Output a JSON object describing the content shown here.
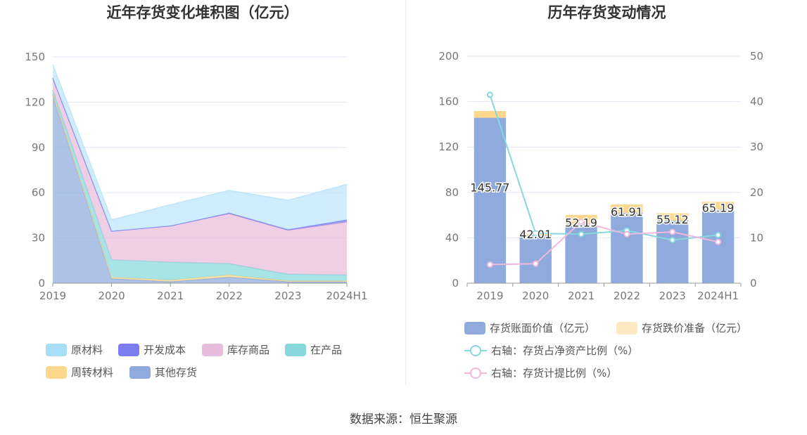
{
  "source_text": "数据来源：恒生聚源",
  "left_chart": {
    "title": "近年存货变化堆积图（亿元）",
    "type": "area",
    "stacked": true,
    "categories": [
      "2019",
      "2020",
      "2021",
      "2022",
      "2023",
      "2024H1"
    ],
    "ylim": [
      0,
      150
    ],
    "yticks": [
      "0",
      "30",
      "60",
      "90",
      "120",
      "150"
    ],
    "grid": true,
    "legend_position": "bottom",
    "series": [
      {
        "name": "其他存货",
        "color": "#8faadc",
        "values": [
          125,
          3,
          1,
          4,
          1,
          1
        ]
      },
      {
        "name": "周转材料",
        "color": "#fbd88e",
        "values": [
          1,
          1,
          1,
          1.5,
          0.5,
          0.5
        ]
      },
      {
        "name": "在产品",
        "color": "#86d8dc",
        "values": [
          2,
          11.5,
          12,
          7.5,
          4.5,
          4
        ]
      },
      {
        "name": "库存商品",
        "color": "#e8bcdc",
        "values": [
          8,
          19,
          24,
          33,
          29,
          35
        ]
      },
      {
        "name": "开发成本",
        "color": "#7b7cf0",
        "values": [
          0,
          0,
          0,
          0.5,
          0.5,
          1.5
        ]
      },
      {
        "name": "原材料",
        "color": "#bde6fb",
        "values": [
          9,
          7.5,
          14,
          15,
          19.5,
          23.5
        ]
      }
    ],
    "legend_order": [
      "原材料",
      "开发成本",
      "库存商品",
      "在产品",
      "周转材料",
      "其他存货"
    ],
    "legend_colors": {
      "原材料": "#a9def8",
      "开发成本": "#7b7cf0",
      "库存商品": "#e8bcdc",
      "在产品": "#86d8dc",
      "周转材料": "#fbd88e",
      "其他存货": "#8faadc"
    }
  },
  "right_chart": {
    "title": "历年存货变动情况",
    "type": "bar",
    "categories": [
      "2019",
      "2020",
      "2021",
      "2022",
      "2023",
      "2024H1"
    ],
    "ylim_left": [
      0,
      200
    ],
    "yticks_left": [
      "0",
      "40",
      "80",
      "120",
      "160",
      "200"
    ],
    "ylim_right": [
      0,
      50
    ],
    "yticks_right": [
      "0",
      "10",
      "20",
      "30",
      "40",
      "50"
    ],
    "grid": true,
    "legend_position": "bottom",
    "bar_series": [
      {
        "name": "存货账面价值（亿元）",
        "color": "#8faadc",
        "values": [
          145.77,
          42.01,
          52.19,
          61.91,
          55.12,
          65.19
        ],
        "labels": [
          "145.77",
          "42.01",
          "52.19",
          "61.91",
          "55.12",
          "65.19"
        ]
      },
      {
        "name": "存货跌价准备（亿元）",
        "color": "#fbd88e",
        "legend_color": "#fde8c4",
        "values": [
          6,
          1.5,
          8,
          7.5,
          6.5,
          6.5
        ]
      }
    ],
    "line_series": [
      {
        "name": "右轴：存货占净资产比例（%）",
        "color": "#86d8dc",
        "values": [
          41.5,
          11,
          10.8,
          11.6,
          9.5,
          10.6
        ]
      },
      {
        "name": "右轴：存货计提比例（%）",
        "color": "#f0b8dc",
        "values": [
          4.1,
          4.3,
          13.5,
          10.8,
          11.3,
          9.1
        ]
      }
    ]
  }
}
